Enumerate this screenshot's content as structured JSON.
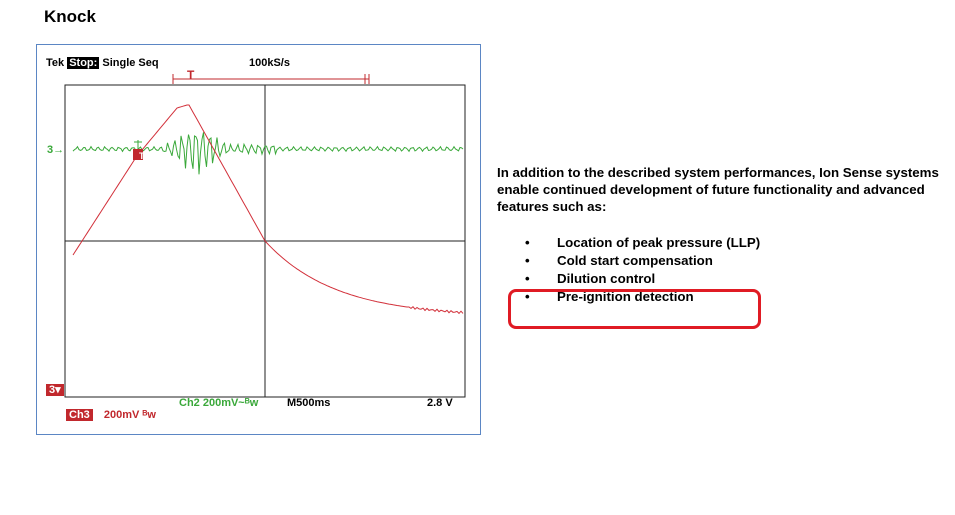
{
  "heading": "Knock",
  "scope": {
    "status_tek": "Tek",
    "status_stop": "Stop:",
    "status_mode": "Single Seq",
    "sample_rate": "100kS/s",
    "ch3_marker_left": "3→",
    "ch3_ground_marker": "3▾",
    "trigger_label": "T",
    "ch2_setting": "Ch2  200mV~ᴮw",
    "timebase": "M500ms",
    "trigger_level": "2.8 V",
    "ch3_label": "Ch3",
    "ch3_setting": "200mV ᴮw",
    "colors": {
      "ch2": "#3aa83a",
      "ch3": "#d2303a",
      "grid": "#222222"
    }
  },
  "body": {
    "paragraph": "In addition to the described system performances, Ion Sense systems enable continued development of future functionality and advanced features such as:",
    "bullet_char": "•",
    "items": [
      "Location of peak pressure (LLP)",
      "Cold start compensation",
      "Dilution control",
      "Pre-ignition detection"
    ],
    "highlight_color": "#e01b24"
  }
}
